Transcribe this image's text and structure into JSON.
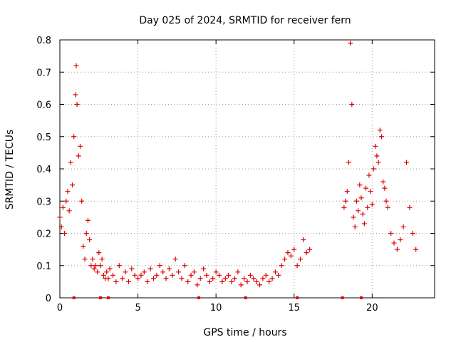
{
  "chart_data": {
    "type": "scatter",
    "title": "Day 025 of 2024, SRMTID for receiver fern",
    "xlabel": "GPS time / hours",
    "ylabel": "SRMTID / TECUs",
    "xlim": [
      0,
      24
    ],
    "ylim": [
      0,
      0.8
    ],
    "x_ticks": [
      0,
      5,
      10,
      15,
      20
    ],
    "y_ticks": [
      0,
      0.1,
      0.2,
      0.3,
      0.4,
      0.5,
      0.6,
      0.7,
      0.8
    ],
    "x_tick_labels": [
      "0",
      "5",
      "10",
      "15",
      "20"
    ],
    "y_tick_labels": [
      "0",
      "0.1",
      "0.2",
      "0.3",
      "0.4",
      "0.5",
      "0.6",
      "0.7",
      "0.8"
    ],
    "grid": true,
    "series": [
      {
        "name": "SRMTID",
        "marker": "+",
        "color": "#e00000",
        "x": [
          0.0,
          0.1,
          0.2,
          0.3,
          0.4,
          0.5,
          0.6,
          0.7,
          0.8,
          0.9,
          1.0,
          1.05,
          1.1,
          1.2,
          1.3,
          1.4,
          1.5,
          1.6,
          1.7,
          1.8,
          1.9,
          2.0,
          2.1,
          2.2,
          2.3,
          2.4,
          2.5,
          2.6,
          2.7,
          2.8,
          2.9,
          3.0,
          3.1,
          3.2,
          3.4,
          3.6,
          3.8,
          4.0,
          4.2,
          4.4,
          4.6,
          4.8,
          5.0,
          5.2,
          5.4,
          5.6,
          5.8,
          6.0,
          6.2,
          6.4,
          6.6,
          6.8,
          7.0,
          7.2,
          7.4,
          7.6,
          7.8,
          8.0,
          8.2,
          8.4,
          8.6,
          8.8,
          9.0,
          9.2,
          9.4,
          9.6,
          9.8,
          10.0,
          10.2,
          10.4,
          10.6,
          10.8,
          11.0,
          11.2,
          11.4,
          11.6,
          11.8,
          12.0,
          12.2,
          12.4,
          12.6,
          12.8,
          13.0,
          13.2,
          13.4,
          13.6,
          13.8,
          14.0,
          14.2,
          14.4,
          14.6,
          14.8,
          15.0,
          15.2,
          15.4,
          15.6,
          15.8,
          16.0,
          18.2,
          18.3,
          18.4,
          18.5,
          18.6,
          18.7,
          18.8,
          18.9,
          19.0,
          19.1,
          19.2,
          19.3,
          19.4,
          19.5,
          19.6,
          19.7,
          19.8,
          19.9,
          20.0,
          20.1,
          20.2,
          20.3,
          20.4,
          20.5,
          20.6,
          20.7,
          20.8,
          20.9,
          21.0,
          21.2,
          21.4,
          21.6,
          21.8,
          22.0,
          22.2,
          22.4,
          22.6,
          22.8
        ],
        "y": [
          0.25,
          0.22,
          0.28,
          0.2,
          0.3,
          0.33,
          0.27,
          0.42,
          0.35,
          0.5,
          0.63,
          0.72,
          0.6,
          0.44,
          0.47,
          0.3,
          0.16,
          0.12,
          0.2,
          0.24,
          0.18,
          0.1,
          0.12,
          0.09,
          0.1,
          0.08,
          0.14,
          0.1,
          0.12,
          0.07,
          0.06,
          0.08,
          0.06,
          0.09,
          0.07,
          0.05,
          0.1,
          0.06,
          0.08,
          0.05,
          0.09,
          0.07,
          0.06,
          0.07,
          0.08,
          0.05,
          0.09,
          0.06,
          0.07,
          0.1,
          0.08,
          0.06,
          0.09,
          0.07,
          0.12,
          0.08,
          0.06,
          0.1,
          0.05,
          0.07,
          0.08,
          0.04,
          0.06,
          0.09,
          0.07,
          0.05,
          0.06,
          0.08,
          0.07,
          0.05,
          0.06,
          0.07,
          0.05,
          0.06,
          0.08,
          0.04,
          0.06,
          0.05,
          0.07,
          0.06,
          0.05,
          0.04,
          0.06,
          0.07,
          0.05,
          0.06,
          0.08,
          0.07,
          0.1,
          0.12,
          0.14,
          0.13,
          0.15,
          0.1,
          0.12,
          0.18,
          0.14,
          0.15,
          0.28,
          0.3,
          0.33,
          0.42,
          0.79,
          0.6,
          0.25,
          0.22,
          0.3,
          0.27,
          0.35,
          0.31,
          0.26,
          0.23,
          0.34,
          0.28,
          0.38,
          0.33,
          0.29,
          0.4,
          0.47,
          0.44,
          0.42,
          0.52,
          0.5,
          0.36,
          0.34,
          0.3,
          0.28,
          0.2,
          0.17,
          0.15,
          0.18,
          0.22,
          0.42,
          0.28,
          0.2,
          0.15
        ]
      }
    ],
    "baseline_markers_x": [
      0.9,
      2.6,
      3.1,
      8.9,
      11.9,
      15.2,
      18.1,
      19.3
    ]
  }
}
